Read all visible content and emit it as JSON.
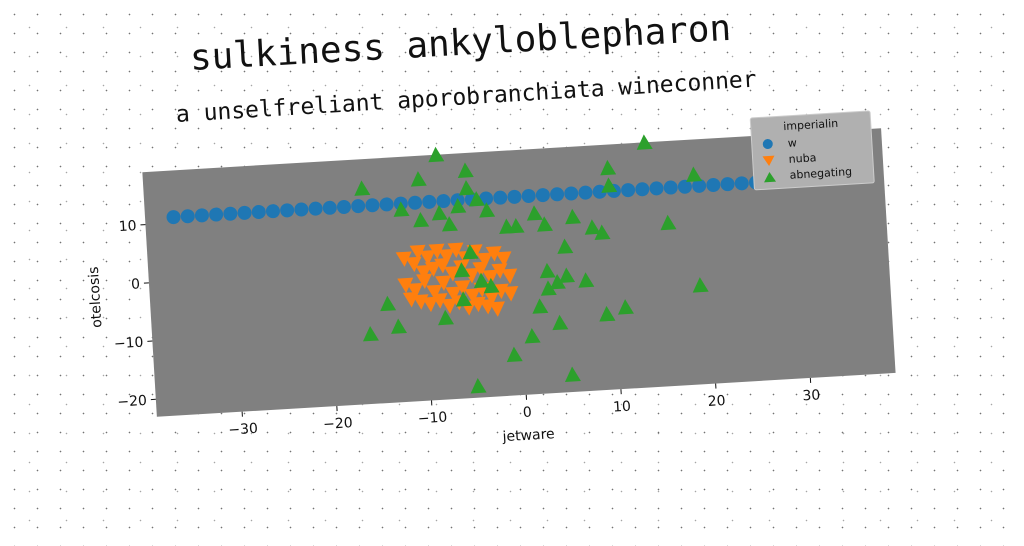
{
  "chart_data": {
    "type": "scatter",
    "title": "sulkiness ankyloblepharon",
    "subtitle": "a unselfreliant aporobranchiata wineconner",
    "xlabel": "jetware",
    "ylabel": "otelcosis",
    "xlim": [
      -39,
      39
    ],
    "ylim": [
      -23,
      19
    ],
    "xticks": [
      -30,
      -20,
      -10,
      0,
      10,
      20,
      30
    ],
    "yticks": [
      -20,
      -10,
      0,
      10
    ],
    "grid": false,
    "background": "#808080",
    "legend": {
      "title": "imperialin",
      "position": "top-right"
    },
    "series": [
      {
        "name": "w",
        "marker": "circle",
        "color": "#1f77b4",
        "x": [
          -36,
          -34.5,
          -33,
          -31.5,
          -30,
          -28.5,
          -27,
          -25.5,
          -24,
          -22.5,
          -21,
          -19.5,
          -18,
          -16.5,
          -15,
          -13.5,
          -12,
          -10.5,
          -9,
          -7.5,
          -6,
          -4.5,
          -3,
          -1.5,
          0,
          1.5,
          3,
          4.5,
          6,
          7.5,
          9,
          10.5,
          12,
          13.5,
          15,
          16.5,
          18,
          19.5,
          21,
          22.5,
          24,
          25.5,
          27,
          28.5,
          30,
          31.5,
          33,
          34.5,
          36
        ],
        "y": [
          11.0,
          11.0,
          11.0,
          11.0,
          11.0,
          11.0,
          11.0,
          11.0,
          11.0,
          11.0,
          11.0,
          11.0,
          11.0,
          11.0,
          11.0,
          11.0,
          11.0,
          11.0,
          11.0,
          11.0,
          11.0,
          11.0,
          11.0,
          11.0,
          11.0,
          11.0,
          11.0,
          11.0,
          11.0,
          11.0,
          11.0,
          11.0,
          11.0,
          11.0,
          11.0,
          11.0,
          11.0,
          11.0,
          11.0,
          11.0,
          11.0,
          11.0,
          11.0,
          11.0,
          11.0,
          11.0,
          11.0,
          11.0,
          11.0
        ]
      },
      {
        "name": "nuba",
        "marker": "triangle-down",
        "color": "#ff7f0e",
        "x": [
          -12,
          -11,
          -10.5,
          -10,
          -9.5,
          -9,
          -8.5,
          -8,
          -7.5,
          -7,
          -6.5,
          -6,
          -5.5,
          -5,
          -4.5,
          -4,
          -3.5,
          -3,
          -2.5,
          -2,
          -1.5,
          -1,
          -12,
          -11,
          -10,
          -9,
          -8,
          -7,
          -6,
          -5,
          -4,
          -3,
          -2,
          -1,
          -11.5,
          -10.5,
          -9.5,
          -8.5,
          -7.5,
          -6.5,
          -5.5,
          -4.5,
          -3.5,
          -2.5
        ],
        "y": [
          1.5,
          0.5,
          2.5,
          -1,
          1.5,
          -0.5,
          2.5,
          0,
          1.5,
          -1.5,
          2.5,
          -0.5,
          1,
          -2,
          2,
          -1,
          0.5,
          -2.5,
          1.5,
          -1.5,
          0.5,
          -2.5,
          -3,
          -4,
          -2.5,
          -4.5,
          -3,
          -5,
          -4,
          -5.5,
          -4.5,
          -6,
          -5,
          -5.5,
          -5.5,
          -6,
          -6.5,
          -6,
          -7,
          -6.5,
          -7.5,
          -7,
          -7.5,
          -8
        ]
      },
      {
        "name": "abnegating",
        "marker": "triangle-up",
        "color": "#2ca02c",
        "x": [
          -8,
          14,
          -16,
          -10,
          -12,
          -5,
          -5,
          -4,
          -6,
          -8,
          -10,
          -7,
          -3,
          -1,
          0,
          3,
          2,
          6,
          8,
          9,
          5,
          3,
          -5,
          -6,
          -4,
          -3,
          3,
          4,
          5,
          7,
          -14,
          -13,
          -16,
          -8,
          -6,
          2,
          9,
          9,
          11,
          1,
          -1,
          -5,
          5,
          16,
          19,
          10,
          10,
          19,
          4
        ],
        "y": [
          19,
          19,
          14,
          15,
          10,
          16,
          13,
          11,
          10,
          9,
          8,
          7,
          9,
          6,
          6,
          6,
          8,
          7,
          5,
          4,
          2,
          -2,
          2,
          -1,
          -3,
          -4,
          -5,
          -4,
          -3,
          -4,
          -6,
          -10,
          -11,
          -9,
          -6,
          -8,
          -10,
          -10,
          -9,
          -13,
          -16,
          -21,
          -20,
          5,
          -6,
          15,
          12,
          13,
          -11
        ]
      }
    ]
  }
}
